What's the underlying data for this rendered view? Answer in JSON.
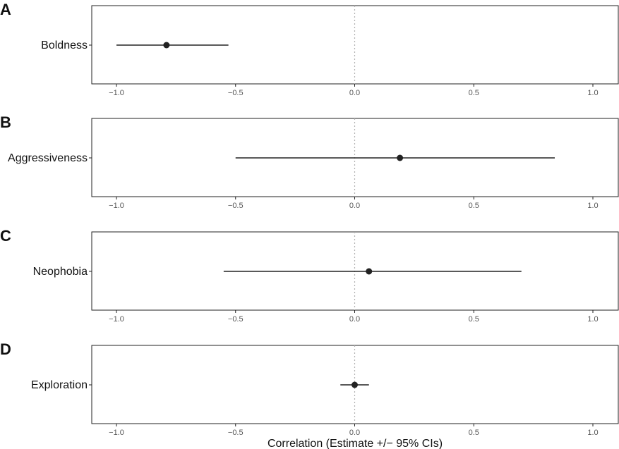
{
  "chart_data": [
    {
      "type": "scatter",
      "panel_label": "A",
      "categories": [
        "Boldness"
      ],
      "estimate": [
        -0.79
      ],
      "ci_lower": [
        -1.0
      ],
      "ci_upper": [
        -0.53
      ],
      "xlim": [
        -1.1,
        1.1
      ],
      "xticks": [
        -1.0,
        -0.5,
        0.0,
        0.5,
        1.0
      ],
      "xtick_labels": [
        "−1.0",
        "−0.5",
        "0.0",
        "0.5",
        "1.0"
      ],
      "reference_line": 0.0,
      "xlabel": "",
      "grid": false
    },
    {
      "type": "scatter",
      "panel_label": "B",
      "categories": [
        "Aggressiveness"
      ],
      "estimate": [
        0.19
      ],
      "ci_lower": [
        -0.5
      ],
      "ci_upper": [
        0.84
      ],
      "xlim": [
        -1.1,
        1.1
      ],
      "xticks": [
        -1.0,
        -0.5,
        0.0,
        0.5,
        1.0
      ],
      "xtick_labels": [
        "−1.0",
        "−0.5",
        "0.0",
        "0.5",
        "1.0"
      ],
      "reference_line": 0.0,
      "xlabel": "",
      "grid": false
    },
    {
      "type": "scatter",
      "panel_label": "C",
      "categories": [
        "Neophobia"
      ],
      "estimate": [
        0.06
      ],
      "ci_lower": [
        -0.55
      ],
      "ci_upper": [
        0.7
      ],
      "xlim": [
        -1.1,
        1.1
      ],
      "xticks": [
        -1.0,
        -0.5,
        0.0,
        0.5,
        1.0
      ],
      "xtick_labels": [
        "−1.0",
        "−0.5",
        "0.0",
        "0.5",
        "1.0"
      ],
      "reference_line": 0.0,
      "xlabel": "",
      "grid": false
    },
    {
      "type": "scatter",
      "panel_label": "D",
      "categories": [
        "Exploration"
      ],
      "estimate": [
        0.0
      ],
      "ci_lower": [
        -0.06
      ],
      "ci_upper": [
        0.06
      ],
      "xlim": [
        -1.1,
        1.1
      ],
      "xticks": [
        -1.0,
        -0.5,
        0.0,
        0.5,
        1.0
      ],
      "xtick_labels": [
        "−1.0",
        "−0.5",
        "0.0",
        "0.5",
        "1.0"
      ],
      "reference_line": 0.0,
      "xlabel": "Correlation (Estimate +/− 95% CIs)",
      "grid": false
    }
  ],
  "colors": {
    "point": "#222222",
    "ci_line": "#222222",
    "reference_line": "#b0b0b0",
    "panel_border": "#222222"
  }
}
